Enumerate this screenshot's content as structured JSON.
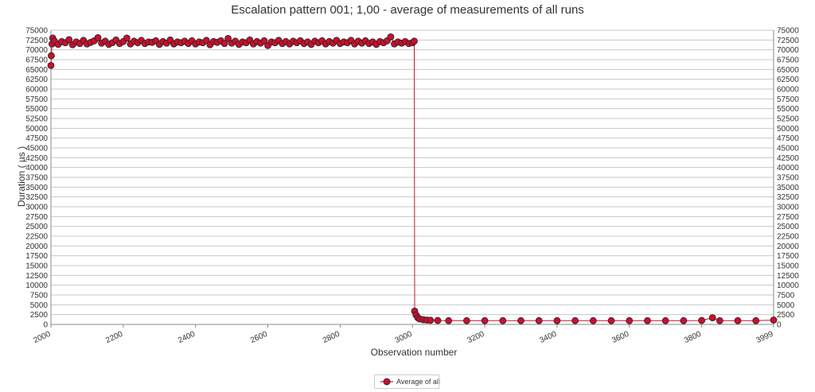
{
  "chart_data": {
    "type": "line",
    "title": "Escalation pattern 001; 1,00 - average of measurements of all runs",
    "xlabel": "Observation number",
    "ylabel": "Duration ( µs )",
    "xlim": [
      2000,
      3999
    ],
    "ylim": [
      0,
      75000
    ],
    "x_ticks": [
      2000,
      2200,
      2400,
      2600,
      2800,
      3000,
      3200,
      3400,
      3600,
      3800,
      3999
    ],
    "y_ticks": [
      0,
      2500,
      5000,
      7500,
      10000,
      12500,
      15000,
      17500,
      20000,
      22500,
      25000,
      27500,
      30000,
      32500,
      35000,
      37500,
      40000,
      42500,
      45000,
      47500,
      50000,
      52500,
      55000,
      57500,
      60000,
      62500,
      65000,
      67500,
      70000,
      72500,
      75000
    ],
    "grid": true,
    "legend_position": "bottom-center",
    "series": [
      {
        "name": "Average of all",
        "color": "#c8102e",
        "marker_edge": "#222222",
        "points": [
          [
            2000,
            66000
          ],
          [
            2001,
            68500
          ],
          [
            2003,
            71500
          ],
          [
            2005,
            73000
          ],
          [
            2010,
            72200
          ],
          [
            2020,
            71400
          ],
          [
            2030,
            72100
          ],
          [
            2040,
            71800
          ],
          [
            2050,
            72600
          ],
          [
            2060,
            71300
          ],
          [
            2070,
            72000
          ],
          [
            2080,
            71600
          ],
          [
            2090,
            72400
          ],
          [
            2100,
            71500
          ],
          [
            2110,
            71900
          ],
          [
            2120,
            72300
          ],
          [
            2130,
            73100
          ],
          [
            2140,
            71700
          ],
          [
            2150,
            72200
          ],
          [
            2160,
            71400
          ],
          [
            2170,
            71800
          ],
          [
            2180,
            72500
          ],
          [
            2190,
            71600
          ],
          [
            2200,
            72100
          ],
          [
            2210,
            73000
          ],
          [
            2220,
            71500
          ],
          [
            2230,
            72200
          ],
          [
            2240,
            71800
          ],
          [
            2250,
            72400
          ],
          [
            2260,
            71600
          ],
          [
            2270,
            72000
          ],
          [
            2280,
            71900
          ],
          [
            2290,
            72300
          ],
          [
            2300,
            71400
          ],
          [
            2310,
            72100
          ],
          [
            2320,
            71700
          ],
          [
            2330,
            72500
          ],
          [
            2340,
            71500
          ],
          [
            2350,
            72000
          ],
          [
            2360,
            71800
          ],
          [
            2370,
            72200
          ],
          [
            2380,
            71600
          ],
          [
            2390,
            72300
          ],
          [
            2400,
            71500
          ],
          [
            2410,
            72000
          ],
          [
            2420,
            71800
          ],
          [
            2430,
            72400
          ],
          [
            2440,
            71300
          ],
          [
            2450,
            72100
          ],
          [
            2460,
            71900
          ],
          [
            2470,
            72300
          ],
          [
            2480,
            71600
          ],
          [
            2490,
            72900
          ],
          [
            2500,
            71700
          ],
          [
            2510,
            72200
          ],
          [
            2520,
            71400
          ],
          [
            2530,
            72000
          ],
          [
            2540,
            71800
          ],
          [
            2550,
            72500
          ],
          [
            2560,
            71500
          ],
          [
            2570,
            72100
          ],
          [
            2580,
            71700
          ],
          [
            2590,
            72300
          ],
          [
            2600,
            71100
          ],
          [
            2610,
            72000
          ],
          [
            2620,
            71800
          ],
          [
            2630,
            72400
          ],
          [
            2640,
            71600
          ],
          [
            2650,
            72100
          ],
          [
            2660,
            71500
          ],
          [
            2670,
            72200
          ],
          [
            2680,
            71800
          ],
          [
            2690,
            72300
          ],
          [
            2700,
            71600
          ],
          [
            2710,
            72000
          ],
          [
            2720,
            71400
          ],
          [
            2730,
            72200
          ],
          [
            2740,
            71800
          ],
          [
            2750,
            72300
          ],
          [
            2760,
            71500
          ],
          [
            2770,
            72100
          ],
          [
            2780,
            71700
          ],
          [
            2790,
            72400
          ],
          [
            2800,
            71600
          ],
          [
            2810,
            72000
          ],
          [
            2820,
            71800
          ],
          [
            2830,
            72400
          ],
          [
            2840,
            71500
          ],
          [
            2850,
            72200
          ],
          [
            2860,
            71700
          ],
          [
            2870,
            72300
          ],
          [
            2880,
            71600
          ],
          [
            2890,
            72000
          ],
          [
            2900,
            71400
          ],
          [
            2910,
            72100
          ],
          [
            2920,
            71800
          ],
          [
            2930,
            72300
          ],
          [
            2940,
            73300
          ],
          [
            2950,
            71500
          ],
          [
            2960,
            72000
          ],
          [
            2970,
            71700
          ],
          [
            2980,
            72100
          ],
          [
            2990,
            71600
          ],
          [
            3000,
            71800
          ],
          [
            3005,
            72200
          ],
          [
            3006,
            3400
          ],
          [
            3010,
            2400
          ],
          [
            3015,
            1700
          ],
          [
            3020,
            1400
          ],
          [
            3030,
            1200
          ],
          [
            3040,
            1100
          ],
          [
            3050,
            1050
          ],
          [
            3070,
            1000
          ],
          [
            3100,
            950
          ],
          [
            3150,
            950
          ],
          [
            3200,
            950
          ],
          [
            3250,
            950
          ],
          [
            3300,
            950
          ],
          [
            3350,
            950
          ],
          [
            3400,
            950
          ],
          [
            3450,
            950
          ],
          [
            3500,
            950
          ],
          [
            3550,
            950
          ],
          [
            3600,
            950
          ],
          [
            3650,
            950
          ],
          [
            3700,
            950
          ],
          [
            3750,
            950
          ],
          [
            3800,
            1000
          ],
          [
            3830,
            1700
          ],
          [
            3850,
            950
          ],
          [
            3900,
            950
          ],
          [
            3950,
            950
          ],
          [
            3999,
            1100
          ]
        ]
      }
    ]
  }
}
